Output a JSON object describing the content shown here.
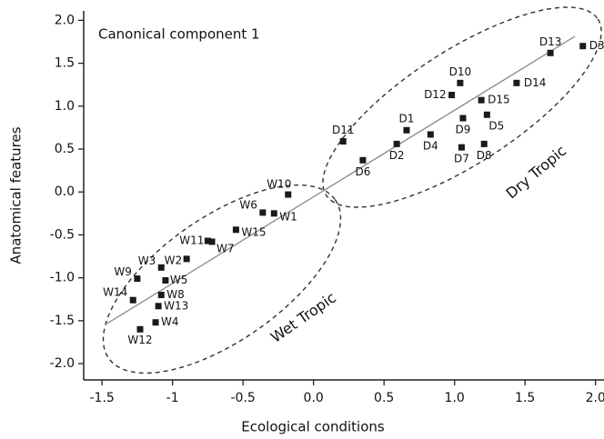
{
  "chart_data": {
    "type": "scatter",
    "title": "Canonical component 1",
    "x_label": "Ecological conditions",
    "y_label": "Anatomical features",
    "annotations": [
      "Dry Tropic",
      "Wet Tropic"
    ],
    "point_labels": [
      "D3",
      "D13",
      "D14",
      "D10",
      "D12",
      "D15",
      "D5",
      "D9",
      "D1",
      "D4",
      "D2",
      "D7",
      "D8",
      "D11",
      "D6",
      "W10",
      "W6",
      "W1",
      "W15",
      "W11",
      "W7",
      "W2",
      "W3",
      "W5",
      "W9",
      "W8",
      "W14",
      "W13",
      "W4",
      "W12"
    ],
    "x": [
      1.91,
      1.68,
      1.44,
      1.04,
      0.98,
      1.19,
      1.23,
      1.06,
      0.66,
      0.83,
      0.59,
      1.05,
      1.21,
      0.21,
      0.35,
      -0.18,
      -0.36,
      -0.28,
      -0.55,
      -0.75,
      -0.72,
      -0.9,
      -1.08,
      -1.05,
      -1.25,
      -1.08,
      -1.28,
      -1.1,
      -1.12,
      -1.23
    ],
    "values": [
      1.7,
      1.62,
      1.27,
      1.27,
      1.13,
      1.07,
      0.9,
      0.86,
      0.72,
      0.67,
      0.56,
      0.52,
      0.56,
      0.59,
      0.37,
      -0.03,
      -0.24,
      -0.25,
      -0.44,
      -0.57,
      -0.58,
      -0.78,
      -0.88,
      -1.03,
      -1.01,
      -1.2,
      -1.26,
      -1.33,
      -1.52,
      -1.6
    ],
    "color": "#1a1a1a",
    "xlim": [
      -1.63,
      2.06
    ],
    "ylim": [
      -2.19,
      2.11
    ],
    "xticks": [
      -1.5,
      -1,
      -0.5,
      {
        "value": 0,
        "label": "0.0"
      },
      0.5,
      {
        "value": 1,
        "label": "1.0"
      },
      1.5,
      {
        "value": 2,
        "label": "2.0"
      }
    ],
    "yticks": [
      {
        "value": 2,
        "label": "2.0"
      },
      1.5,
      {
        "value": 1,
        "label": "1.0"
      },
      0.5,
      {
        "value": 0,
        "label": "0.0"
      },
      -0.5,
      {
        "value": -1,
        "label": "-1.0"
      },
      -1.5,
      {
        "value": -2,
        "label": "-2.0"
      }
    ]
  }
}
